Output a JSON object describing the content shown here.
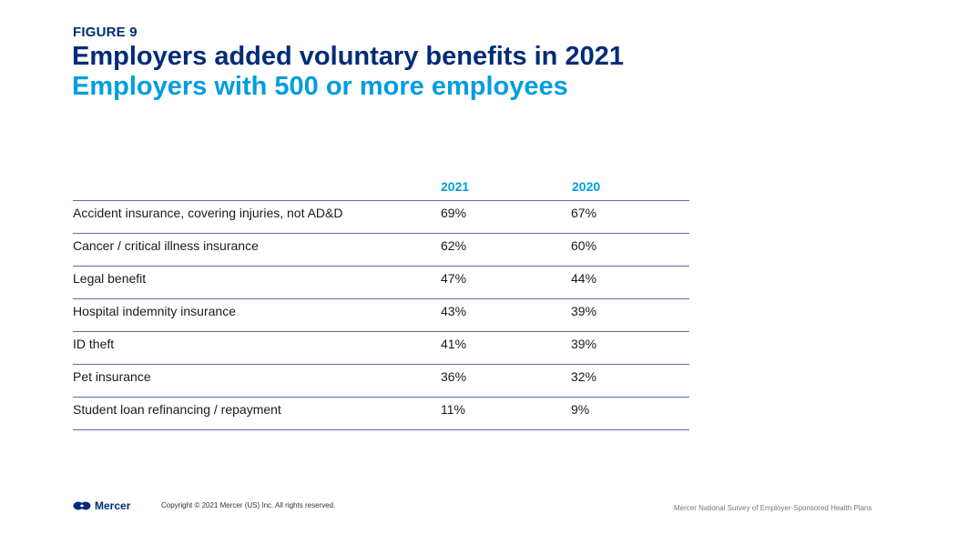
{
  "figure_label": "FIGURE 9",
  "title": "Employers added voluntary benefits in 2021",
  "subtitle": "Employers with 500 or more employees",
  "colors": {
    "navy": "#002c77",
    "cyan": "#009de0",
    "rule": "#5b6fa6"
  },
  "chart_data": {
    "type": "table",
    "columns": [
      "2021",
      "2020"
    ],
    "rows": [
      {
        "label": "Accident insurance, covering injuries, not AD&D",
        "values": [
          "69%",
          "67%"
        ]
      },
      {
        "label": "Cancer / critical illness insurance",
        "values": [
          "62%",
          "60%"
        ]
      },
      {
        "label": "Legal benefit",
        "values": [
          "47%",
          "44%"
        ]
      },
      {
        "label": "Hospital indemnity insurance",
        "values": [
          "43%",
          "39%"
        ]
      },
      {
        "label": "ID theft",
        "values": [
          "41%",
          "39%"
        ]
      },
      {
        "label": "Pet insurance",
        "values": [
          "36%",
          "32%"
        ]
      },
      {
        "label": "Student loan refinancing / repayment",
        "values": [
          "11%",
          "9%"
        ]
      }
    ]
  },
  "footer": {
    "logo_icon": "mercer-logo-icon",
    "logo_text": "Mercer",
    "copyright": "Copyright © 2021 Mercer (US) Inc. All rights reserved.",
    "source": "Mercer National Survey of Employer-Sponsored Health Plans"
  }
}
